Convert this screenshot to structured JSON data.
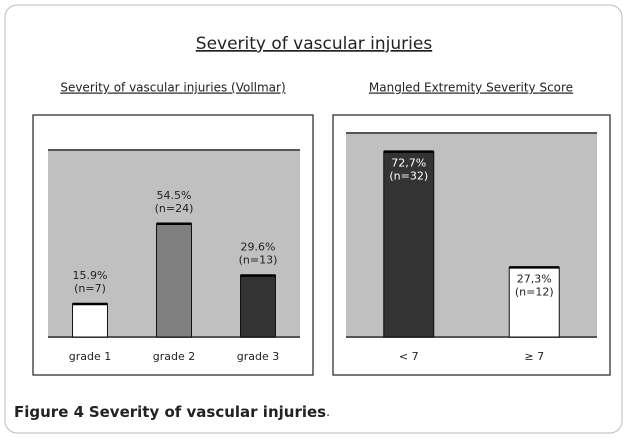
{
  "title": "Severity of vascular injuries",
  "caption": {
    "label": "Figure 4",
    "text": "Severity of vascular injuries",
    "end": "."
  },
  "chart_data": [
    {
      "type": "bar",
      "title": "Severity of vascular injuries (Vollmar)",
      "categories": [
        "grade 1",
        "grade 2",
        "grade 3"
      ],
      "values": [
        15.9,
        54.5,
        29.6
      ],
      "value_labels": [
        "15.9%",
        "54.5%",
        "29.6%"
      ],
      "n_labels": [
        "(n=7)",
        "(n=24)",
        "(n=13)"
      ],
      "colors": [
        "#ffffff",
        "#808080",
        "#333333"
      ],
      "ylim": [
        0,
        90
      ],
      "label_position": "above"
    },
    {
      "type": "bar",
      "title": "Mangled Extremity Severity Score",
      "categories": [
        "< 7",
        "≥ 7"
      ],
      "values": [
        72.7,
        27.3
      ],
      "value_labels": [
        "72,7%",
        "27,3%"
      ],
      "n_labels": [
        "(n=32)",
        "(n=12)"
      ],
      "colors": [
        "#333333",
        "#ffffff"
      ],
      "ylim": [
        0,
        80
      ],
      "label_position": "inside"
    }
  ]
}
